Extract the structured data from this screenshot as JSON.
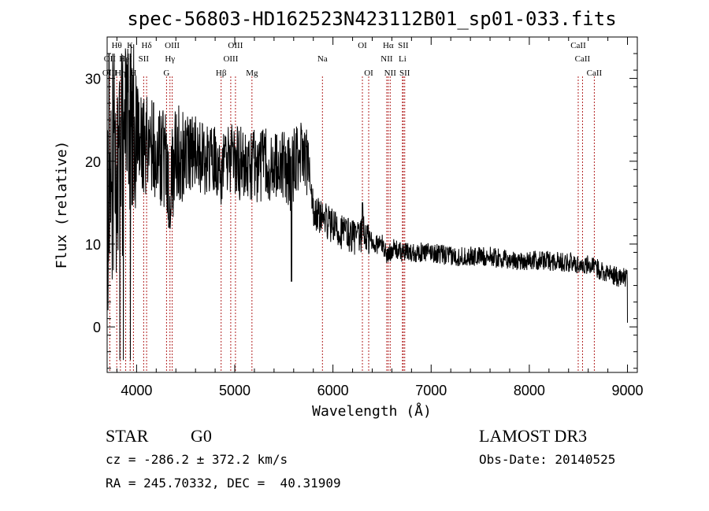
{
  "chart_data": {
    "type": "line",
    "title": "spec-56803-HD162523N423112B01_sp01-033.fits",
    "xlabel": "Wavelength (Å)",
    "ylabel": "Flux (relative)",
    "xlim": [
      3700,
      9100
    ],
    "ylim": [
      -5.5,
      35
    ],
    "xticks": [
      4000,
      5000,
      6000,
      7000,
      8000,
      9000
    ],
    "yticks": [
      0,
      10,
      20,
      30
    ],
    "series": [
      {
        "name": "flux",
        "color": "#000000",
        "anchors_x": [
          3700,
          3750,
          3800,
          3850,
          3900,
          3950,
          4000,
          4050,
          4100,
          4200,
          4300,
          4330,
          4400,
          4500,
          4600,
          4700,
          4800,
          4860,
          4900,
          5000,
          5100,
          5200,
          5300,
          5400,
          5500,
          5580,
          5600,
          5650,
          5700,
          5750,
          5780,
          5800,
          5850,
          5900,
          5950,
          6000,
          6100,
          6200,
          6280,
          6300,
          6400,
          6500,
          6563,
          6600,
          6700,
          6800,
          7000,
          7200,
          7400,
          7600,
          7800,
          8000,
          8200,
          8400,
          8500,
          8600,
          8700,
          8800,
          8900,
          9000
        ],
        "anchors_y": [
          14,
          18,
          15,
          20,
          22,
          24,
          24,
          22,
          22,
          21,
          20,
          16,
          21,
          21,
          21,
          20,
          20,
          18,
          20,
          20,
          19.5,
          19.5,
          19.5,
          19.5,
          19.5,
          18,
          20,
          20.5,
          21,
          20,
          16,
          14,
          13.5,
          13,
          12.5,
          12,
          11.5,
          11,
          10.5,
          11.5,
          10,
          10,
          8.5,
          9.5,
          9,
          9,
          9,
          8.5,
          8.5,
          8.5,
          8,
          8,
          8,
          7.8,
          7.5,
          7.5,
          7,
          6.5,
          6,
          6
        ]
      }
    ],
    "lines": [
      {
        "label": "Hθ",
        "wave": 3798,
        "row": 0
      },
      {
        "label": "K",
        "wave": 3934,
        "row": 0
      },
      {
        "label": "Hδ",
        "wave": 4102,
        "row": 0
      },
      {
        "label": "OIII",
        "wave": 4363,
        "row": 0
      },
      {
        "label": "OIII",
        "wave": 5007,
        "row": 0
      },
      {
        "label": "OI",
        "wave": 6300,
        "row": 0
      },
      {
        "label": "Hα",
        "wave": 6563,
        "row": 0
      },
      {
        "label": "SII",
        "wave": 6716,
        "row": 0
      },
      {
        "label": "CaII",
        "wave": 8498,
        "row": 0
      },
      {
        "label": "OII",
        "wave": 3727,
        "row": 1
      },
      {
        "label": "HeI",
        "wave": 3889,
        "row": 1
      },
      {
        "label": "SII",
        "wave": 4072,
        "row": 1
      },
      {
        "label": "Hγ",
        "wave": 4340,
        "row": 1
      },
      {
        "label": "OIII",
        "wave": 4959,
        "row": 1
      },
      {
        "label": "Na",
        "wave": 5893,
        "row": 1
      },
      {
        "label": "NII",
        "wave": 6548,
        "row": 1
      },
      {
        "label": "Li",
        "wave": 6708,
        "row": 1
      },
      {
        "label": "CaII",
        "wave": 8542,
        "row": 1
      },
      {
        "label": "OIII",
        "wave": 3727,
        "row": 2
      },
      {
        "label": "Hη",
        "wave": 3835,
        "row": 2
      },
      {
        "label": "H",
        "wave": 3968,
        "row": 2
      },
      {
        "label": "G",
        "wave": 4305,
        "row": 2
      },
      {
        "label": "Hβ",
        "wave": 4861,
        "row": 2
      },
      {
        "label": "Mg",
        "wave": 5175,
        "row": 2
      },
      {
        "label": "OI",
        "wave": 6364,
        "row": 2
      },
      {
        "label": "NII",
        "wave": 6583,
        "row": 2
      },
      {
        "label": "SII",
        "wave": 6731,
        "row": 2
      },
      {
        "label": "CaII",
        "wave": 8662,
        "row": 2
      }
    ],
    "line_color": "#b22222"
  },
  "info": {
    "class": "STAR",
    "subclass": "G0",
    "survey": "LAMOST DR3",
    "cz": "cz = -286.2 ± 372.2 km/s",
    "obs_date": "Obs-Date: 20140525",
    "coords": "RA = 245.70332, DEC =  40.31909"
  }
}
